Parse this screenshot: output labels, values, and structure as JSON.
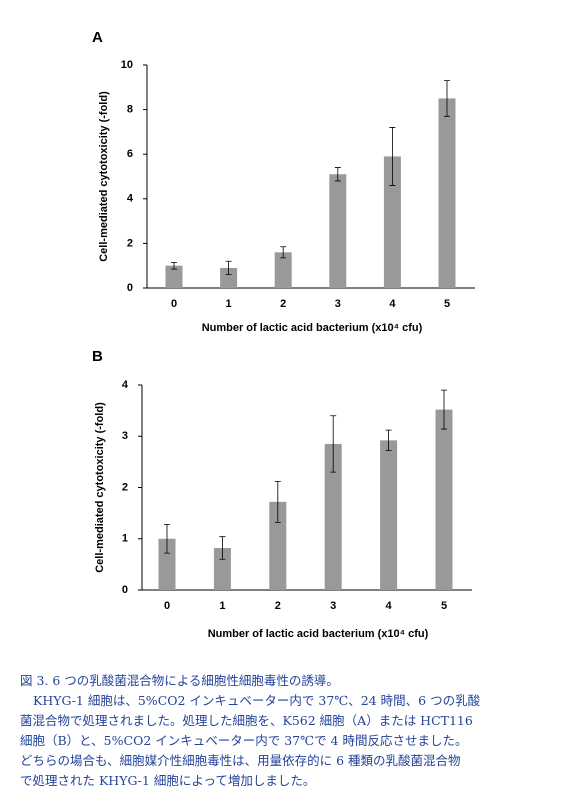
{
  "chart_data": [
    {
      "type": "bar",
      "panel": "A",
      "y_label": "Cell-mediated cytotoxicity (-fold)",
      "x_label": "Number of lactic acid bacterium (x10⁴ cfu)",
      "categories": [
        "0",
        "1",
        "2",
        "3",
        "4",
        "5"
      ],
      "values": [
        1.0,
        0.9,
        1.6,
        5.1,
        5.9,
        8.5
      ],
      "errors": [
        0.15,
        0.3,
        0.25,
        0.3,
        1.3,
        0.8
      ],
      "color": "#999999",
      "ylim": [
        0,
        10
      ],
      "yticks": [
        0,
        2,
        4,
        6,
        8,
        10
      ]
    },
    {
      "type": "bar",
      "panel": "B",
      "y_label": "Cell-mediated cytotoxicity (-fold)",
      "x_label": "Number of lactic acid bacterium (x10⁴ cfu)",
      "categories": [
        "0",
        "1",
        "2",
        "3",
        "4",
        "5"
      ],
      "values": [
        1.0,
        0.82,
        1.72,
        2.85,
        2.92,
        3.52
      ],
      "errors": [
        0.28,
        0.22,
        0.4,
        0.55,
        0.2,
        0.38
      ],
      "color": "#999999",
      "ylim": [
        0,
        4
      ],
      "yticks": [
        0,
        1,
        2,
        3,
        4
      ]
    }
  ],
  "caption": {
    "title": "図 3. 6 つの乳酸菌混合物による細胞性細胞毒性の誘導。",
    "lines": [
      "KHYG-1 細胞は、5%CO2 インキュベーター内で 37℃、24 時間、6 つの乳酸",
      "菌混合物で処理されました。処理した細胞を、K562 細胞（A）または HCT116",
      "細胞（B）と、5%CO2 インキュベーター内で 37℃で 4 時間反応させました。",
      "どちらの場合も、細胞媒介性細胞毒性は、用量依存的に 6 種類の乳酸菌混合物",
      "で処理された KHYG-1 細胞によって増加しました。"
    ]
  }
}
